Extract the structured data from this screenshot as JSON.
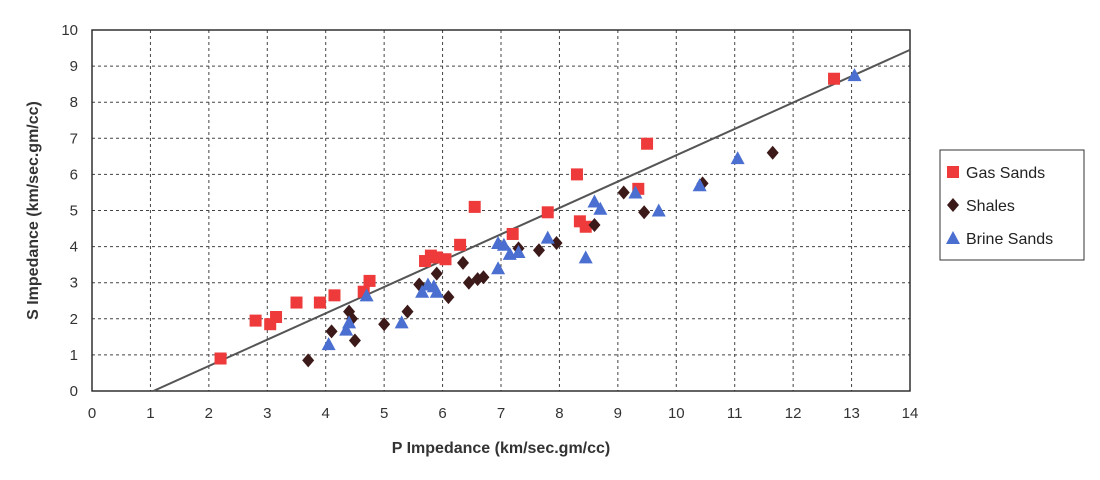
{
  "chart_data": {
    "type": "scatter",
    "xlabel": "P Impedance (km/sec.gm/cc)",
    "ylabel": "S Impedance (km/sec.gm/cc)",
    "xlim": [
      0,
      14
    ],
    "ylim": [
      0,
      10
    ],
    "xticks": [
      "0",
      "1",
      "2",
      "3",
      "4",
      "5",
      "6",
      "7",
      "8",
      "9",
      "10",
      "11",
      "12",
      "13",
      "14"
    ],
    "yticks": [
      "0",
      "1",
      "2",
      "3",
      "4",
      "5",
      "6",
      "7",
      "8",
      "9",
      "10"
    ],
    "grid": true,
    "legend_position": "right",
    "series": [
      {
        "name": "Gas Sands",
        "color": "#ee3a3a",
        "marker": "square",
        "points": [
          [
            2.2,
            0.9
          ],
          [
            2.8,
            1.95
          ],
          [
            3.05,
            1.85
          ],
          [
            3.15,
            2.05
          ],
          [
            3.5,
            2.45
          ],
          [
            3.9,
            2.45
          ],
          [
            4.15,
            2.65
          ],
          [
            4.65,
            2.75
          ],
          [
            4.75,
            3.05
          ],
          [
            5.7,
            3.6
          ],
          [
            5.8,
            3.75
          ],
          [
            5.9,
            3.7
          ],
          [
            6.05,
            3.65
          ],
          [
            6.3,
            4.05
          ],
          [
            6.55,
            5.1
          ],
          [
            7.2,
            4.35
          ],
          [
            7.8,
            4.95
          ],
          [
            8.3,
            6.0
          ],
          [
            8.35,
            4.7
          ],
          [
            8.45,
            4.55
          ],
          [
            9.35,
            5.6
          ],
          [
            9.5,
            6.85
          ],
          [
            12.7,
            8.65
          ]
        ]
      },
      {
        "name": "Shales",
        "color": "#3d1a1a",
        "marker": "diamond",
        "points": [
          [
            3.7,
            0.85
          ],
          [
            4.1,
            1.65
          ],
          [
            4.4,
            2.2
          ],
          [
            4.45,
            2.0
          ],
          [
            4.5,
            1.4
          ],
          [
            5.0,
            1.85
          ],
          [
            5.4,
            2.2
          ],
          [
            5.6,
            2.95
          ],
          [
            5.9,
            3.25
          ],
          [
            6.1,
            2.6
          ],
          [
            6.35,
            3.55
          ],
          [
            6.45,
            3.0
          ],
          [
            6.6,
            3.1
          ],
          [
            6.7,
            3.15
          ],
          [
            7.3,
            3.95
          ],
          [
            7.65,
            3.9
          ],
          [
            7.95,
            4.1
          ],
          [
            8.6,
            4.6
          ],
          [
            9.1,
            5.5
          ],
          [
            9.45,
            4.95
          ],
          [
            10.45,
            5.75
          ],
          [
            11.65,
            6.6
          ]
        ]
      },
      {
        "name": "Brine Sands",
        "color": "#4a6fd0",
        "marker": "triangle",
        "points": [
          [
            4.05,
            1.3
          ],
          [
            4.35,
            1.7
          ],
          [
            4.4,
            1.9
          ],
          [
            4.7,
            2.65
          ],
          [
            5.3,
            1.9
          ],
          [
            5.65,
            2.75
          ],
          [
            5.75,
            2.95
          ],
          [
            5.85,
            2.9
          ],
          [
            5.9,
            2.75
          ],
          [
            6.95,
            3.4
          ],
          [
            6.95,
            4.1
          ],
          [
            7.05,
            4.05
          ],
          [
            7.15,
            3.8
          ],
          [
            7.3,
            3.85
          ],
          [
            7.8,
            4.25
          ],
          [
            8.45,
            3.7
          ],
          [
            8.6,
            5.25
          ],
          [
            8.7,
            5.05
          ],
          [
            9.3,
            5.5
          ],
          [
            9.7,
            5.0
          ],
          [
            10.4,
            5.7
          ],
          [
            11.05,
            6.45
          ],
          [
            13.05,
            8.75
          ]
        ]
      }
    ],
    "trendline": {
      "color": "#555555",
      "from": [
        1.05,
        0.0
      ],
      "to": [
        14.0,
        9.45
      ]
    }
  }
}
